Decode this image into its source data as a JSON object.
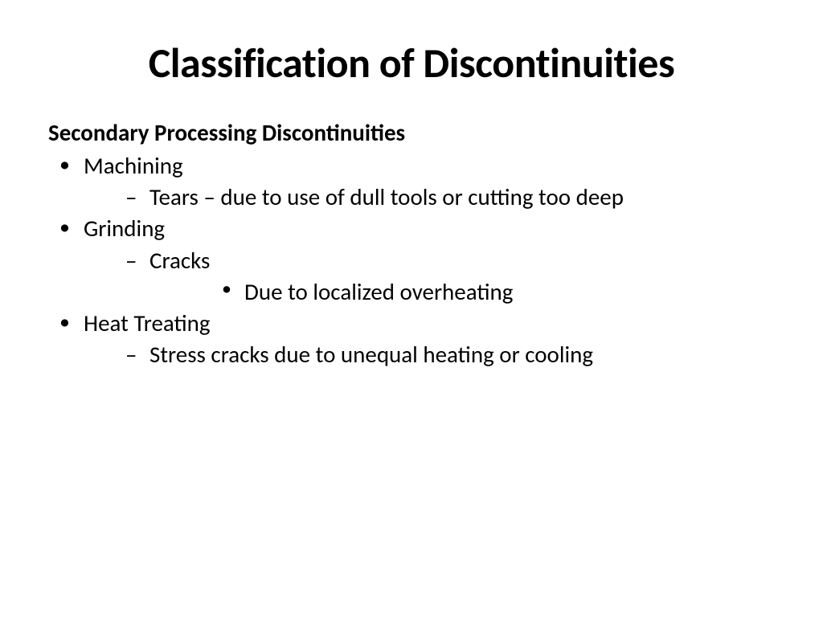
{
  "slide": {
    "title": "Classification of Discontinuities",
    "subheading": "Secondary Processing Discontinuities",
    "items": [
      {
        "label": "Machining",
        "children": [
          {
            "label": "Tears – due to use of dull tools or cutting too deep"
          }
        ]
      },
      {
        "label": "Grinding",
        "children": [
          {
            "label": "Cracks",
            "children": [
              {
                "label": "Due to localized overheating"
              }
            ]
          }
        ]
      },
      {
        "label": "Heat Treating",
        "children": [
          {
            "label": "Stress cracks due to unequal heating or cooling"
          }
        ]
      }
    ]
  },
  "style": {
    "background_color": "#ffffff",
    "text_color": "#000000",
    "title_fontsize": 52,
    "title_fontweight": 700,
    "subheading_fontsize": 29,
    "subheading_fontweight": 700,
    "body_fontsize": 29,
    "font_family": "Calibri",
    "bullet_lvl1": "•",
    "bullet_lvl2": "–",
    "bullet_lvl3": "•"
  }
}
